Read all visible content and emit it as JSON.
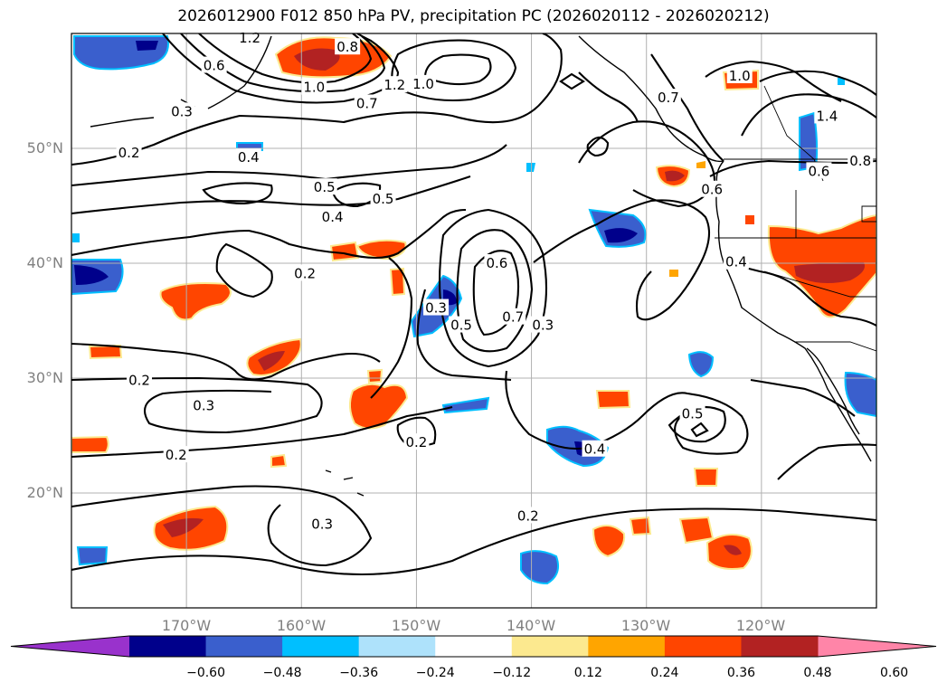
{
  "title": "2026012900 F012 850 hPa PV, precipitation PC (2026020112 - 2026020212)",
  "map": {
    "lat_labels": [
      "50°N",
      "40°N",
      "30°N",
      "20°N"
    ],
    "lon_labels": [
      "170°W",
      "160°W",
      "150°W",
      "140°W",
      "130°W",
      "120°W"
    ]
  },
  "chart_data": {
    "type": "contour-map",
    "title": "2026012900 F012 850 hPa PV, precipitation PC (2026020112 - 2026020212)",
    "lon_range": [
      -180,
      -110
    ],
    "lat_range": [
      10,
      60
    ],
    "fill_variable": "precipitation PC",
    "contour_variable": "850 hPa PV",
    "contour_labels": [
      {
        "text": "0.8",
        "lon": -156,
        "lat": 58.8
      },
      {
        "text": "1.2",
        "lon": -151.9,
        "lat": 55.5
      },
      {
        "text": "1.0",
        "lon": -149.4,
        "lat": 55.6
      },
      {
        "text": "1.0",
        "lon": -158.9,
        "lat": 55.3
      },
      {
        "text": "0.7",
        "lon": -154.3,
        "lat": 53.9
      },
      {
        "text": "0.6",
        "lon": -167.6,
        "lat": 57.2
      },
      {
        "text": "0.3",
        "lon": -170.4,
        "lat": 53.2
      },
      {
        "text": "1.2",
        "lon": -164.5,
        "lat": 59.6
      },
      {
        "text": "0.2",
        "lon": -175,
        "lat": 49.6
      },
      {
        "text": "0.4",
        "lon": -164.6,
        "lat": 49.2
      },
      {
        "text": "0.5",
        "lon": -158.0,
        "lat": 46.6
      },
      {
        "text": "0.5",
        "lon": -152.9,
        "lat": 45.6
      },
      {
        "text": "0.4",
        "lon": -157.3,
        "lat": 44.0
      },
      {
        "text": "0.2",
        "lon": -159.7,
        "lat": 39.1
      },
      {
        "text": "0.3",
        "lon": -148.3,
        "lat": 36.1
      },
      {
        "text": "0.5",
        "lon": -146.1,
        "lat": 34.6
      },
      {
        "text": "0.6",
        "lon": -143.0,
        "lat": 40.0
      },
      {
        "text": "0.7",
        "lon": -141.6,
        "lat": 35.3
      },
      {
        "text": "0.3",
        "lon": -139.0,
        "lat": 34.6
      },
      {
        "text": "0.2",
        "lon": -174.1,
        "lat": 29.8
      },
      {
        "text": "0.3",
        "lon": -168.5,
        "lat": 27.6
      },
      {
        "text": "0.2",
        "lon": -170.9,
        "lat": 23.3
      },
      {
        "text": "0.2",
        "lon": -150.0,
        "lat": 24.4
      },
      {
        "text": "0.4",
        "lon": -134.5,
        "lat": 23.8
      },
      {
        "text": "0.5",
        "lon": -126.0,
        "lat": 26.9
      },
      {
        "text": "0.2",
        "lon": -140.3,
        "lat": 18.0
      },
      {
        "text": "0.3",
        "lon": -158.2,
        "lat": 17.3
      },
      {
        "text": "0.4",
        "lon": -122.2,
        "lat": 40.1
      },
      {
        "text": "0.6",
        "lon": -124.3,
        "lat": 46.4
      },
      {
        "text": "0.7",
        "lon": -128.1,
        "lat": 54.4
      },
      {
        "text": "1.0",
        "lon": -121.9,
        "lat": 56.3
      },
      {
        "text": "1.4",
        "lon": -114.3,
        "lat": 52.8
      },
      {
        "text": "0.8",
        "lon": -111.4,
        "lat": 48.9
      },
      {
        "text": "0.6",
        "lon": -115.0,
        "lat": 48.0
      }
    ],
    "colorbar": {
      "ticks": [
        "−0.60",
        "−0.48",
        "−0.36",
        "−0.24",
        "−0.12",
        "0.12",
        "0.24",
        "0.36",
        "0.48",
        "0.60"
      ],
      "colors": [
        "#9932cc",
        "#00008b",
        "#3a5fcd",
        "#00bfff",
        "#aee2fb",
        "#ffffff",
        "#fce98f",
        "#ffa500",
        "#ff4500",
        "#b22222",
        "#ff85a8"
      ],
      "extend": "both"
    }
  }
}
